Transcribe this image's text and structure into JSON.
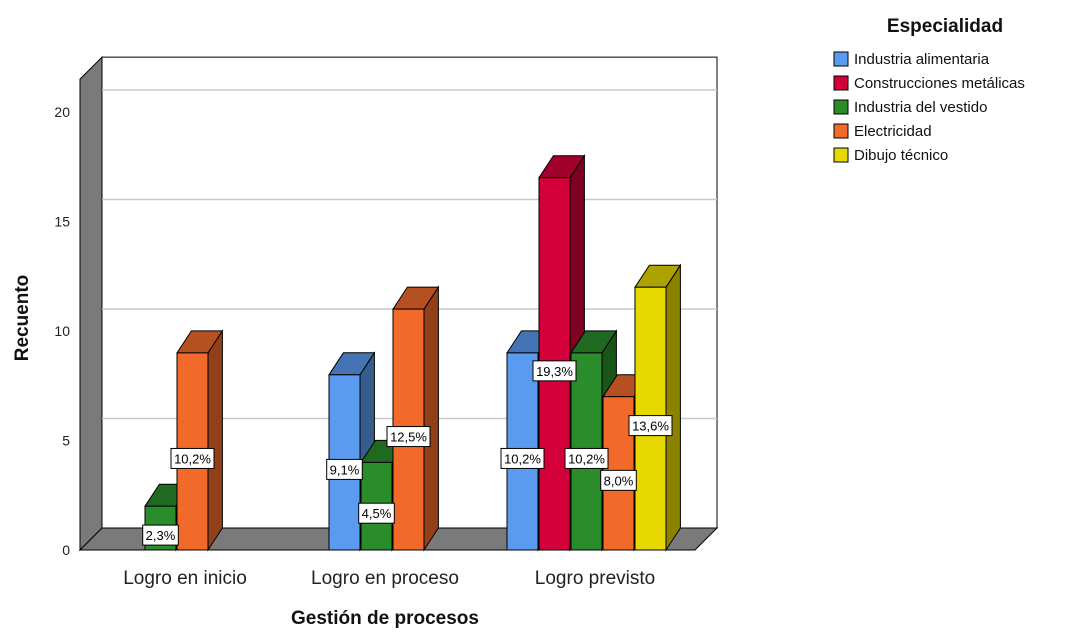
{
  "chart_data": {
    "type": "bar",
    "xlabel": "Gestión de procesos",
    "ylabel": "Recuento",
    "ylim": [
      0,
      20
    ],
    "yticks": [
      0,
      5,
      10,
      15,
      20
    ],
    "grid": true,
    "legend_title": "Especialidad",
    "legend_position": "top-right",
    "categories": [
      "Logro en inicio",
      "Logro en proceso",
      "Logro previsto"
    ],
    "series": [
      {
        "name": "Industria alimentaria",
        "color": "#5b9bef",
        "values": [
          0,
          8,
          9
        ],
        "labels": [
          "",
          "9,1%",
          "10,2%"
        ]
      },
      {
        "name": "Construcciones metálicas",
        "color": "#d4003a",
        "values": [
          0,
          0,
          17
        ],
        "labels": [
          "",
          "",
          "19,3%"
        ]
      },
      {
        "name": "Industria del vestido",
        "color": "#2a8c2a",
        "values": [
          2,
          4,
          9
        ],
        "labels": [
          "2,3%",
          "4,5%",
          "10,2%"
        ]
      },
      {
        "name": "Electricidad",
        "color": "#f26a2a",
        "values": [
          9,
          11,
          7
        ],
        "labels": [
          "10,2%",
          "12,5%",
          "8,0%"
        ]
      },
      {
        "name": "Dibujo técnico",
        "color": "#e6d800",
        "values": [
          0,
          0,
          12
        ],
        "labels": [
          "",
          "",
          "13,6%"
        ]
      }
    ]
  }
}
